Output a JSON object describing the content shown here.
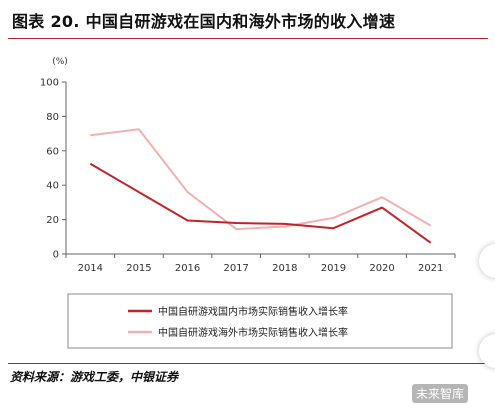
{
  "title": "图表 20. 中国自研游戏在国内和海外市场的收入增速",
  "source": "资料来源：游戏工委，中银证券",
  "watermark": "未来智库",
  "chart_data": {
    "type": "line",
    "unit_label": "(%)",
    "x": [
      "2014",
      "2015",
      "2016",
      "2017",
      "2018",
      "2019",
      "2020",
      "2021"
    ],
    "ylim": [
      0,
      100
    ],
    "yticks": [
      0,
      20,
      40,
      60,
      80,
      100
    ],
    "grid": false,
    "legend_position": "bottom",
    "series": [
      {
        "name": "中国自研游戏国内市场实际销售收入增长率",
        "color": "#c0252a",
        "values": [
          52.5,
          36,
          19.5,
          18,
          17.5,
          15,
          27,
          6.5
        ]
      },
      {
        "name": "中国自研游戏海外市场实际销售收入增长率",
        "color": "#f2b1b1",
        "values": [
          69,
          72.5,
          36,
          14.5,
          16,
          21,
          33,
          16.5
        ]
      }
    ]
  }
}
